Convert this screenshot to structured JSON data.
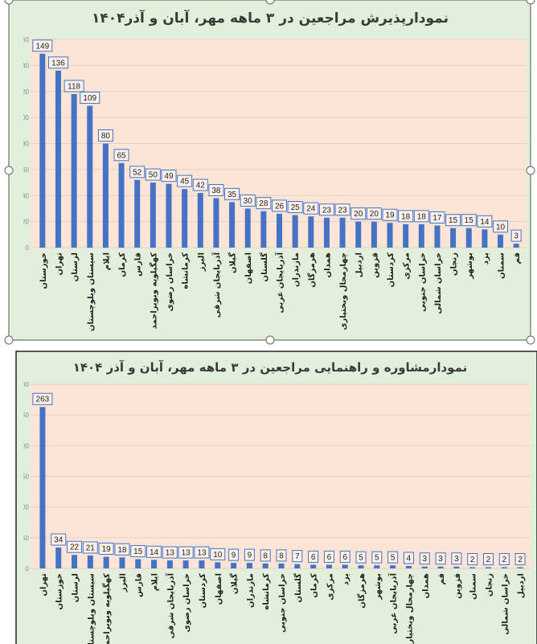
{
  "chart_data": [
    {
      "type": "bar",
      "title": "نمودارپذیرش مراجعین در ۳ ماهه مهر، آبان و آذر۱۴۰۴",
      "categories": [
        "خوزستان",
        "تهران",
        "لرستان",
        "سیستان وبلوچستان",
        "ایلام",
        "کرمان",
        "فارس",
        "کهگیلویه وبویراحمد",
        "خراسان رضوی",
        "کرمانشاه",
        "البرز",
        "آذربایجان شرقی",
        "گیلان",
        "اصفهان",
        "گلستان",
        "آذربایجان غربی",
        "مازندران",
        "هرمزگان",
        "همدان",
        "چهارمحال وبختیاری",
        "اردبیل",
        "قزوین",
        "کردستان",
        "مرکزی",
        "خراسان جنوبی",
        "خراسان شمالی",
        "زنجان",
        "بوشهر",
        "یزد",
        "سمنان",
        "قم"
      ],
      "values": [
        149,
        136,
        118,
        109,
        80,
        65,
        52,
        50,
        49,
        45,
        42,
        38,
        35,
        30,
        28,
        26,
        25,
        24,
        23,
        23,
        20,
        20,
        19,
        18,
        18,
        17,
        15,
        15,
        14,
        10,
        3
      ],
      "ylim": [
        0,
        160
      ],
      "yticks": [
        0,
        20,
        40,
        60,
        80,
        100,
        120,
        140,
        160
      ],
      "grid": true,
      "legend": "none",
      "colors": {
        "bar": "#4472c4",
        "plot_bg": "#fce4d6",
        "chart_bg": "#e2efda",
        "label_border": "#4472c4"
      }
    },
    {
      "type": "bar",
      "title": "نمودارمشاوره و راهنمایی مراجعین در ۳ ماهه مهر، آبان و آذر ۱۴۰۴",
      "categories": [
        "تهران",
        "خوزستان",
        "لرستان",
        "سیستان وبلوچستان",
        "کهگیلویه وبویراحمد",
        "البرز",
        "فارس",
        "ایلام",
        "آذربایجان شرقی",
        "خراسان رضوی",
        "کردستان",
        "اصفهان",
        "گیلان",
        "مازندران",
        "کرمانشاه",
        "خراسان جنوبی",
        "گلستان",
        "کرمان",
        "مرکزی",
        "یزد",
        "هرمزگان",
        "بوشهر",
        "آذربایجان غربی",
        "چهارمحال وبختیاری",
        "همدان",
        "قم",
        "قزوین",
        "سمنان",
        "زنجان",
        "خراسان شمالی",
        "اردبیل"
      ],
      "values": [
        263,
        34,
        22,
        21,
        19,
        18,
        15,
        14,
        13,
        13,
        13,
        10,
        9,
        9,
        8,
        8,
        7,
        6,
        6,
        6,
        5,
        5,
        5,
        4,
        3,
        3,
        3,
        2,
        2,
        2,
        2
      ],
      "ylim": [
        0,
        300
      ],
      "yticks": [
        0,
        50,
        100,
        150,
        200,
        250,
        300
      ],
      "grid": true,
      "legend": "none",
      "colors": {
        "bar": "#4472c4",
        "plot_bg": "#fce4d6",
        "chart_bg": "#e2efda",
        "label_border": "#4472c4"
      }
    }
  ]
}
